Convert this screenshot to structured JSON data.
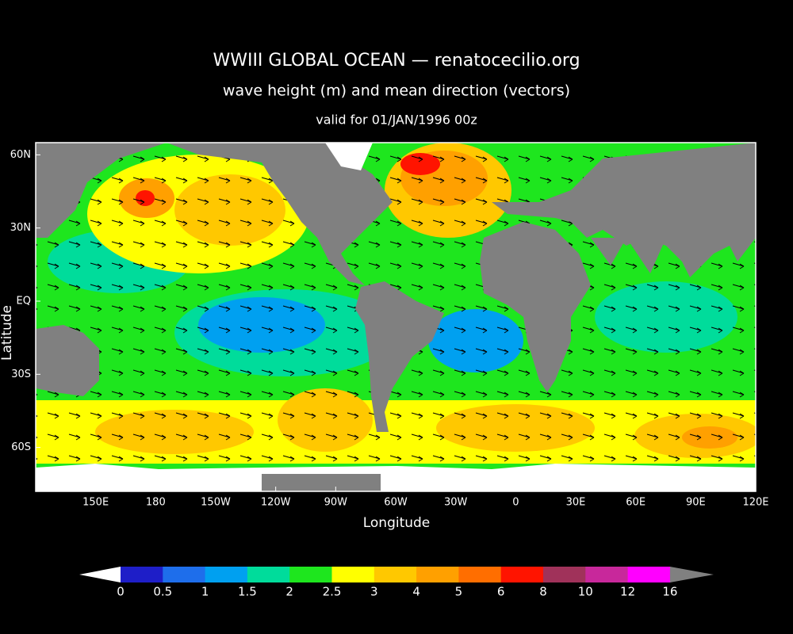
{
  "chart_data": {
    "type": "contour-map",
    "title": "WWIII GLOBAL OCEAN — renatocecilio.org",
    "subtitle": "wave height (m) and mean direction (vectors)",
    "valid": "valid for 01/JAN/1996 00z",
    "xlabel": "Longitude",
    "ylabel": "Latitude",
    "xlim": [
      120,
      480
    ],
    "ylim": [
      -78,
      65
    ],
    "xticks": [
      {
        "value": 150,
        "label": "150E"
      },
      {
        "value": 180,
        "label": "180"
      },
      {
        "value": 210,
        "label": "150W"
      },
      {
        "value": 240,
        "label": "120W"
      },
      {
        "value": 270,
        "label": "90W"
      },
      {
        "value": 300,
        "label": "60W"
      },
      {
        "value": 330,
        "label": "30W"
      },
      {
        "value": 360,
        "label": "0"
      },
      {
        "value": 390,
        "label": "30E"
      },
      {
        "value": 420,
        "label": "60E"
      },
      {
        "value": 450,
        "label": "90E"
      },
      {
        "value": 480,
        "label": "120E"
      }
    ],
    "yticks": [
      {
        "value": 60,
        "label": "60N"
      },
      {
        "value": 30,
        "label": "30N"
      },
      {
        "value": 0,
        "label": "EQ"
      },
      {
        "value": -30,
        "label": "30S"
      },
      {
        "value": -60,
        "label": "60S"
      }
    ],
    "colorbar": {
      "levels": [
        0,
        0.5,
        1,
        1.5,
        2,
        2.5,
        3,
        4,
        5,
        6,
        8,
        10,
        12,
        16
      ],
      "colors": [
        "#1e1ec8",
        "#1e6eeb",
        "#00a0f0",
        "#00dc9b",
        "#1ee61e",
        "#ffff00",
        "#ffc800",
        "#ffa000",
        "#ff6e00",
        "#ff1400",
        "#a0325a",
        "#c8289b",
        "#ff00ff"
      ],
      "under_color": "#ffffff",
      "over_color": "#808080"
    }
  }
}
